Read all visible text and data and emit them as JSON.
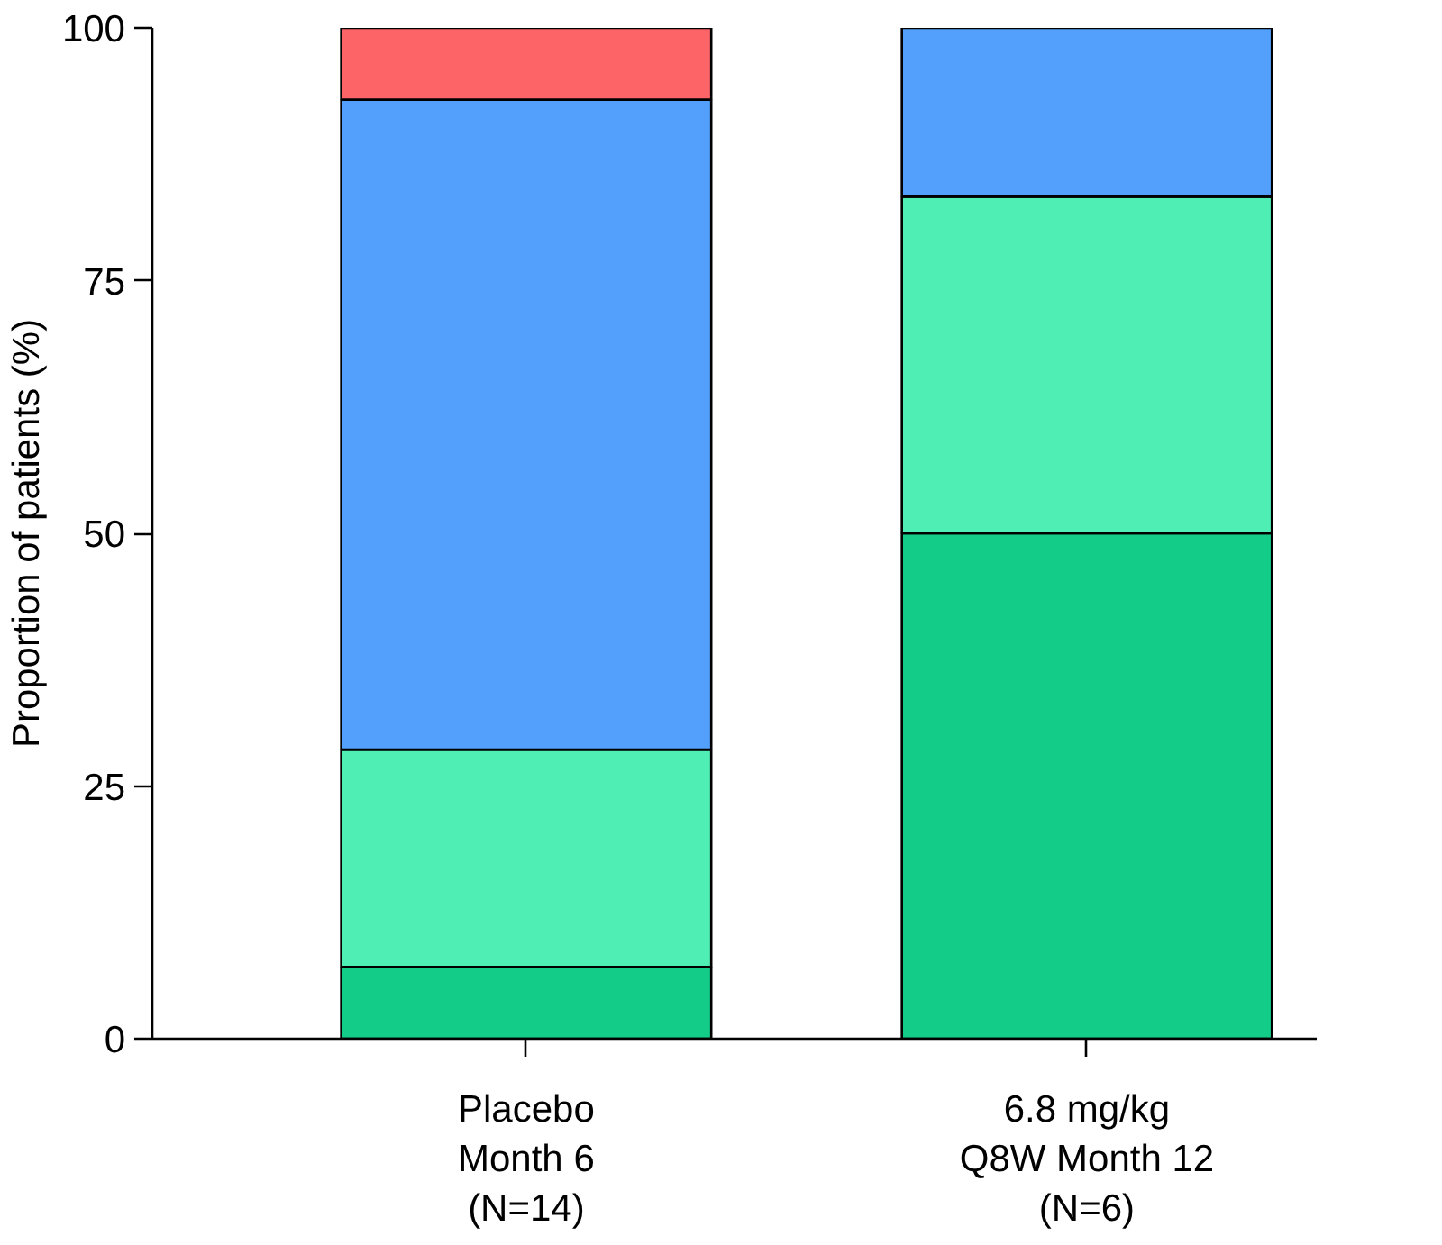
{
  "chart_data": {
    "type": "bar",
    "stacked": true,
    "ylabel": "Proportion of patients (%)",
    "categories": [
      "Placebo\nMonth 6\n(N=14)",
      "6.8 mg/kg\nQ8W Month 12\n(N=6)"
    ],
    "series": [
      {
        "color": "#13cc88",
        "values": [
          7.1,
          50
        ]
      },
      {
        "color": "#4eeeb4",
        "values": [
          21.5,
          33.3
        ]
      },
      {
        "color": "#52a0fc",
        "values": [
          64.3,
          16.7
        ]
      },
      {
        "color": "#fc6467",
        "values": [
          7.1,
          0
        ]
      }
    ],
    "ylim": [
      0,
      100
    ],
    "yticks": [
      0,
      25,
      50,
      75,
      100
    ],
    "grid": false
  }
}
